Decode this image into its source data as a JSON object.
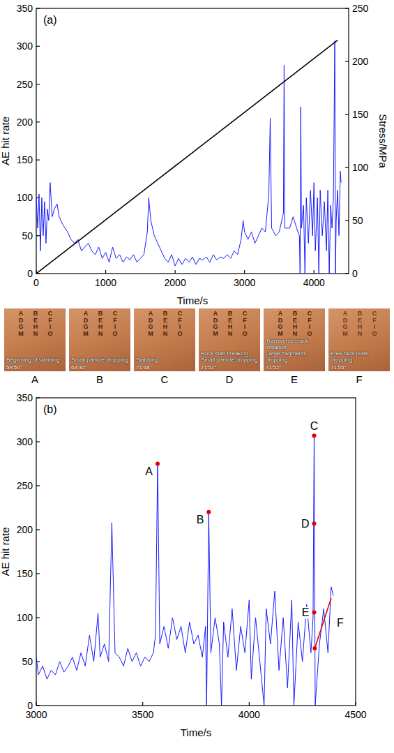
{
  "chart_data": [
    {
      "type": "line",
      "panel_label": "(a)",
      "x_label": "Time/s",
      "y_label": "AE hit rate",
      "y2_label": "Stress/MPa",
      "xlim": [
        0,
        4500
      ],
      "xticks": [
        0,
        1000,
        2000,
        3000,
        4000
      ],
      "ylim": [
        0,
        350
      ],
      "yticks": [
        0,
        50,
        100,
        150,
        200,
        250,
        300,
        350
      ],
      "y2lim": [
        0,
        250
      ],
      "y2ticks": [
        0,
        50,
        100,
        150,
        200,
        250
      ],
      "grid": false,
      "series": [
        {
          "color": "#1a1aff",
          "x": [
            0,
            20,
            40,
            60,
            80,
            100,
            120,
            140,
            160,
            180,
            200,
            230,
            260,
            300,
            330,
            380,
            450,
            500,
            550,
            600,
            650,
            700,
            750,
            800,
            850,
            900,
            950,
            1000,
            1050,
            1100,
            1150,
            1200,
            1250,
            1300,
            1350,
            1400,
            1450,
            1500,
            1550,
            1600,
            1620,
            1650,
            1700,
            1750,
            1800,
            1850,
            1900,
            1950,
            2000,
            2050,
            2100,
            2150,
            2200,
            2250,
            2300,
            2350,
            2400,
            2450,
            2500,
            2550,
            2600,
            2650,
            2700,
            2750,
            2800,
            2850,
            2900,
            2950,
            2980,
            3000,
            3050,
            3100,
            3150,
            3200,
            3250,
            3300,
            3350,
            3370,
            3390,
            3450,
            3500,
            3560,
            3570,
            3580,
            3650,
            3700,
            3750,
            3790,
            3800,
            3810,
            3820,
            3850,
            3870,
            3890,
            3920,
            3950,
            3980,
            4000,
            4020,
            4050,
            4070,
            4090,
            4120,
            4150,
            4180,
            4200,
            4220,
            4240,
            4260,
            4280,
            4300,
            4310,
            4320,
            4340,
            4360,
            4380,
            4390
          ],
          "values": [
            100,
            60,
            105,
            30,
            100,
            50,
            95,
            40,
            85,
            70,
            120,
            75,
            85,
            92,
            75,
            65,
            55,
            45,
            40,
            45,
            30,
            35,
            40,
            30,
            25,
            35,
            20,
            28,
            15,
            35,
            20,
            25,
            15,
            22,
            18,
            25,
            15,
            20,
            25,
            55,
            100,
            70,
            50,
            40,
            30,
            20,
            15,
            25,
            10,
            20,
            12,
            20,
            15,
            22,
            12,
            20,
            18,
            22,
            15,
            25,
            18,
            22,
            20,
            25,
            20,
            30,
            25,
            45,
            70,
            55,
            45,
            55,
            40,
            50,
            60,
            55,
            105,
            205,
            60,
            50,
            55,
            80,
            275,
            60,
            60,
            75,
            60,
            50,
            0,
            220,
            60,
            90,
            0,
            100,
            40,
            110,
            50,
            120,
            30,
            100,
            0,
            110,
            50,
            95,
            30,
            110,
            0,
            90,
            60,
            100,
            307,
            0,
            70,
            110,
            50,
            135,
            120
          ]
        },
        {
          "color": "#000000",
          "axis": "y2",
          "x": [
            0,
            4340
          ],
          "values": [
            0,
            220
          ]
        }
      ]
    },
    {
      "type": "line",
      "panel_label": "(b)",
      "x_label": "Time/s",
      "y_label": "AE hit rate",
      "xlim": [
        3000,
        4500
      ],
      "xticks": [
        3000,
        3500,
        4000,
        4500
      ],
      "ylim": [
        0,
        350
      ],
      "yticks": [
        0,
        50,
        100,
        150,
        200,
        250,
        300,
        350
      ],
      "grid": false,
      "series": [
        {
          "color": "#1a1aff",
          "x": [
            3000,
            3010,
            3030,
            3050,
            3070,
            3090,
            3110,
            3130,
            3150,
            3170,
            3190,
            3210,
            3230,
            3250,
            3270,
            3290,
            3300,
            3320,
            3340,
            3355,
            3370,
            3390,
            3410,
            3430,
            3450,
            3470,
            3490,
            3510,
            3530,
            3550,
            3560,
            3570,
            3580,
            3600,
            3620,
            3640,
            3660,
            3680,
            3700,
            3720,
            3740,
            3760,
            3780,
            3795,
            3800,
            3810,
            3820,
            3840,
            3860,
            3870,
            3880,
            3900,
            3920,
            3940,
            3960,
            3980,
            4000,
            4010,
            4030,
            4050,
            4070,
            4080,
            4100,
            4120,
            4140,
            4160,
            4180,
            4200,
            4210,
            4230,
            4250,
            4270,
            4290,
            4300,
            4305,
            4310,
            4330,
            4350,
            4370,
            4385,
            4395
          ],
          "values": [
            55,
            35,
            45,
            30,
            40,
            35,
            50,
            38,
            45,
            55,
            40,
            60,
            45,
            80,
            50,
            105,
            55,
            70,
            50,
            208,
            60,
            55,
            45,
            65,
            50,
            60,
            45,
            55,
            50,
            60,
            80,
            275,
            70,
            90,
            65,
            100,
            75,
            90,
            60,
            95,
            70,
            80,
            55,
            90,
            0,
            220,
            60,
            100,
            70,
            0,
            95,
            55,
            110,
            40,
            90,
            60,
            120,
            30,
            100,
            50,
            0,
            110,
            70,
            130,
            40,
            100,
            20,
            120,
            0,
            95,
            50,
            115,
            60,
            100,
            307,
            0,
            70,
            110,
            60,
            135,
            125
          ]
        }
      ],
      "annotations": [
        {
          "label": "A",
          "x": 3570,
          "y": 275,
          "color": "#e00000"
        },
        {
          "label": "B",
          "x": 3810,
          "y": 220,
          "color": "#e00000"
        },
        {
          "label": "C",
          "x": 4305,
          "y": 307,
          "color": "#e00000"
        },
        {
          "label": "D",
          "x": 4305,
          "y": 207,
          "color": "#e00000"
        },
        {
          "label": "E",
          "x": 4305,
          "y": 106,
          "color": "#e00000"
        },
        {
          "label": "F",
          "x": [
            4308,
            4385
          ],
          "y": [
            65,
            122
          ],
          "color": "#e00000"
        }
      ]
    }
  ],
  "photo_strip": {
    "specimen_letters": [
      [
        "A",
        "B",
        "C"
      ],
      [
        "D",
        "E",
        "F"
      ],
      [
        "G",
        "H",
        "I"
      ],
      [
        "M",
        "N",
        "O"
      ]
    ],
    "panels": [
      {
        "label": "A",
        "time": "59'50''",
        "captions": [
          "Beginning of slabbing"
        ]
      },
      {
        "label": "B",
        "time": "63'30''",
        "captions": [
          "Small particle dropping"
        ]
      },
      {
        "label": "C",
        "time": "71'48''",
        "captions": [
          "Slabbing"
        ]
      },
      {
        "label": "D",
        "time": "71'51''",
        "captions": [
          "Rock slab breaking",
          "Small particle dropping"
        ]
      },
      {
        "label": "E",
        "time": "71'52''",
        "captions": [
          "Transverse crack initiation",
          "Large fragments dropping"
        ]
      },
      {
        "label": "F",
        "time": "71'55''",
        "captions": [
          "Free-face plate dropping"
        ]
      }
    ]
  }
}
